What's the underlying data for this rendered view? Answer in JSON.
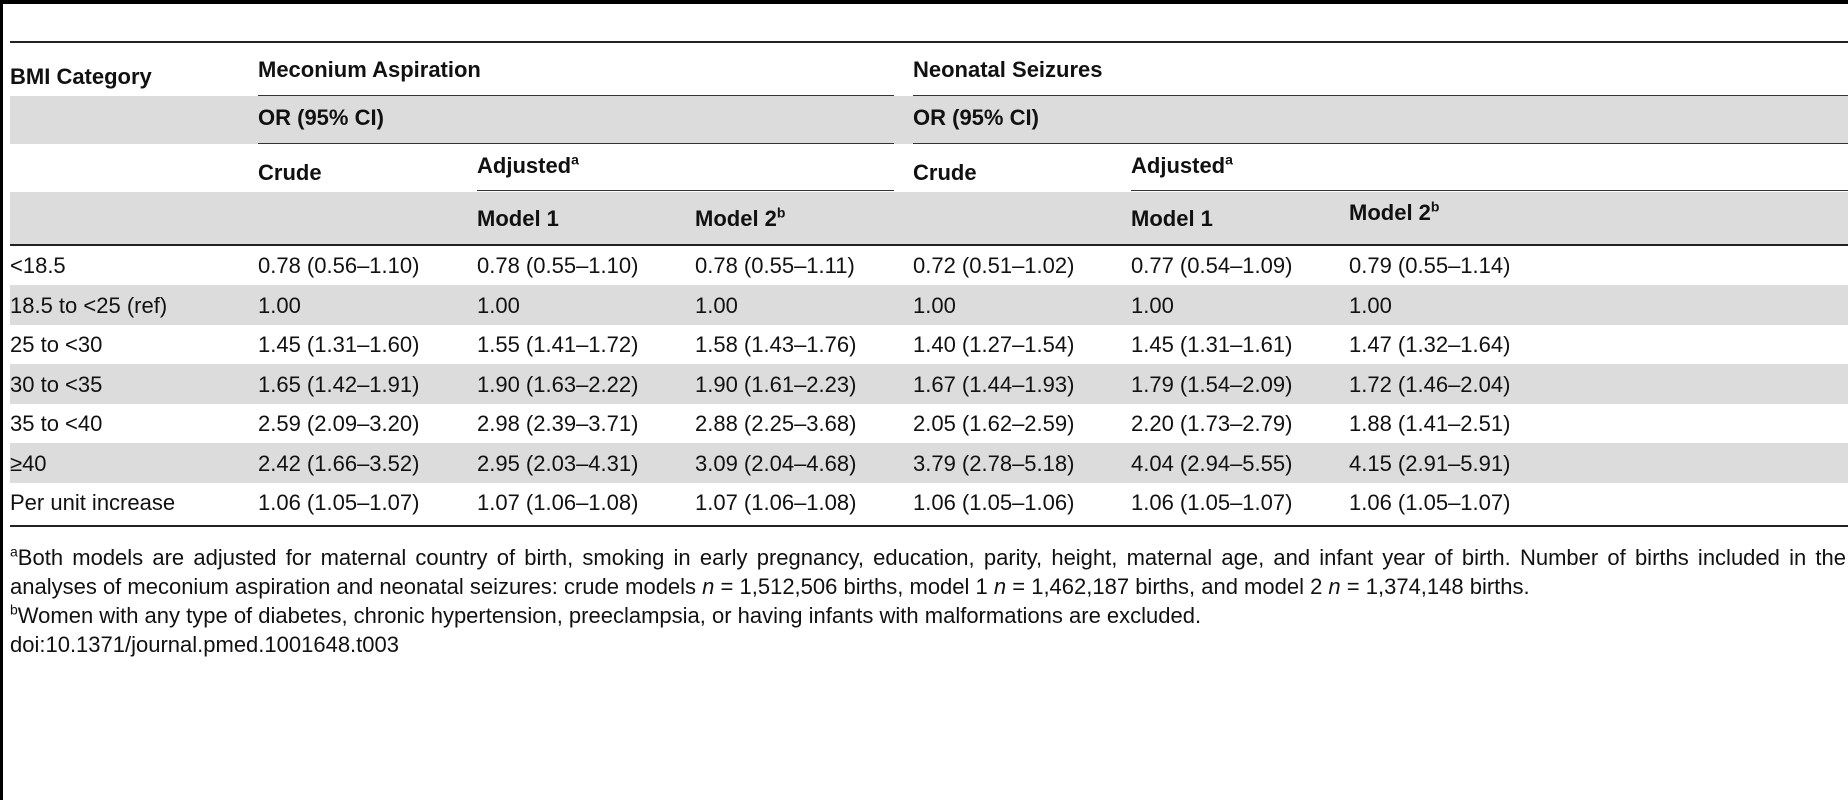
{
  "table": {
    "header": {
      "row_label": "BMI Category",
      "groups": [
        "Meconium Aspiration",
        "Neonatal Seizures"
      ],
      "measure": "OR (95% CI)",
      "crude": "Crude",
      "adjusted": "Adjusted",
      "adjusted_sup": "a",
      "model1": "Model 1",
      "model2": "Model 2",
      "model2_sup": "b"
    },
    "rows": [
      {
        "label": "<18.5",
        "cells": [
          "0.78 (0.56–1.10)",
          "0.78 (0.55–1.10)",
          "0.78 (0.55–1.11)",
          "0.72 (0.51–1.02)",
          "0.77 (0.54–1.09)",
          "0.79 (0.55–1.14)"
        ]
      },
      {
        "label": "18.5 to <25 (ref)",
        "cells": [
          "1.00",
          "1.00",
          "1.00",
          "1.00",
          "1.00",
          "1.00"
        ]
      },
      {
        "label": "25 to <30",
        "cells": [
          "1.45 (1.31–1.60)",
          "1.55 (1.41–1.72)",
          "1.58 (1.43–1.76)",
          "1.40 (1.27–1.54)",
          "1.45 (1.31–1.61)",
          "1.47 (1.32–1.64)"
        ]
      },
      {
        "label": "30 to <35",
        "cells": [
          "1.65 (1.42–1.91)",
          "1.90 (1.63–2.22)",
          "1.90 (1.61–2.23)",
          "1.67 (1.44–1.93)",
          "1.79 (1.54–2.09)",
          "1.72 (1.46–2.04)"
        ]
      },
      {
        "label": "35 to <40",
        "cells": [
          "2.59 (2.09–3.20)",
          "2.98 (2.39–3.71)",
          "2.88 (2.25–3.68)",
          "2.05 (1.62–2.59)",
          "2.20 (1.73–2.79)",
          "1.88 (1.41–2.51)"
        ]
      },
      {
        "label": "≥40",
        "cells": [
          "2.42 (1.66–3.52)",
          "2.95 (2.03–4.31)",
          "3.09 (2.04–4.68)",
          "3.79 (2.78–5.18)",
          "4.04 (2.94–5.55)",
          "4.15 (2.91–5.91)"
        ]
      },
      {
        "label": "Per unit increase",
        "cells": [
          "1.06 (1.05–1.07)",
          "1.07 (1.06–1.08)",
          "1.07 (1.06–1.08)",
          "1.06 (1.05–1.06)",
          "1.06 (1.05–1.07)",
          "1.06 (1.05–1.07)"
        ]
      }
    ]
  },
  "footnotes": {
    "a_mark": "a",
    "a_pre1": "Both models are adjusted for maternal country of birth, smoking in early pregnancy, education, parity, height, maternal age, and infant year of birth. Number of births included in the analyses of meconium aspiration and neonatal seizures: crude models ",
    "n1": "n",
    "a_val1": " = 1,512,506 births, model 1 ",
    "n2": "n",
    "a_val2": " = 1,462,187 births, and model 2 ",
    "n3": "n",
    "a_val3": " = 1,374,148 births.",
    "b_mark": "b",
    "b_text": "Women with any type of diabetes, chronic hypertension, preeclampsia, or having infants with malformations are excluded.",
    "doi": "doi:10.1371/journal.pmed.1001648.t003"
  }
}
